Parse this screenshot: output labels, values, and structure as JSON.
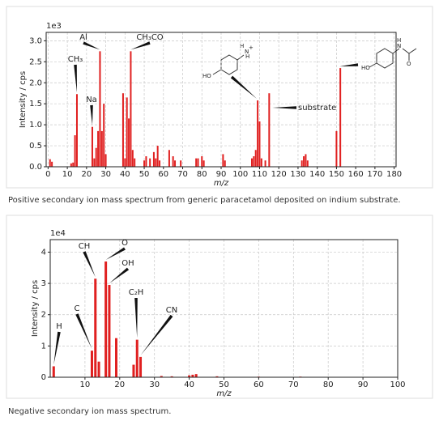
{
  "chart_data": [
    {
      "type": "bar",
      "offset_label": "1e3",
      "ylabel": "Intensity / cps",
      "xlabel": "m/z",
      "caption": "Positive secondary ion mass spectrum from generic paracetamol deposited on indium substrate.",
      "color": "#e02020",
      "grid": true,
      "xlim": [
        -1,
        181
      ],
      "ylim": [
        0,
        3.2
      ],
      "xticks": [
        0,
        10,
        20,
        30,
        40,
        50,
        60,
        70,
        80,
        90,
        100,
        110,
        120,
        130,
        140,
        150,
        160,
        170,
        180
      ],
      "yticks": [
        {
          "value": 0,
          "label": "0.0"
        },
        0.5,
        {
          "value": 1,
          "label": "1.0"
        },
        1.5,
        {
          "value": 2,
          "label": "2.0"
        },
        2.5,
        {
          "value": 3,
          "label": "3.0"
        }
      ],
      "x": [
        1,
        2,
        12,
        13,
        14,
        15,
        23,
        24,
        25,
        26,
        27,
        28,
        29,
        30,
        39,
        40,
        41,
        42,
        43,
        44,
        45,
        50,
        51,
        53,
        55,
        56,
        57,
        58,
        63,
        65,
        66,
        69,
        77,
        78,
        80,
        81,
        91,
        92,
        106,
        107,
        108,
        109,
        110,
        111,
        113,
        115,
        132,
        133,
        134,
        135,
        150,
        152
      ],
      "values": [
        0.18,
        0.12,
        0.08,
        0.1,
        0.75,
        1.73,
        0.95,
        0.2,
        0.45,
        0.85,
        2.75,
        0.85,
        1.5,
        0.3,
        1.75,
        0.2,
        1.65,
        1.15,
        2.75,
        0.4,
        0.2,
        0.15,
        0.25,
        0.2,
        0.35,
        0.2,
        0.5,
        0.15,
        0.4,
        0.25,
        0.15,
        0.15,
        0.2,
        0.2,
        0.25,
        0.15,
        0.3,
        0.15,
        0.2,
        0.25,
        0.4,
        1.58,
        1.08,
        0.2,
        0.15,
        1.75,
        0.15,
        0.25,
        0.3,
        0.15,
        0.85,
        2.35
      ],
      "annotations": [
        "CH₃",
        "Na",
        "Al",
        "CH₃CO",
        "substrate"
      ],
      "structure_labels": [
        "HO",
        "N",
        "H",
        "H",
        "+",
        "HO",
        "H",
        "N",
        "O"
      ]
    },
    {
      "type": "bar",
      "offset_label": "1e4",
      "ylabel": "Intensity / cps",
      "xlabel": "m/z",
      "caption": "Negative secondary ion mass spectrum.",
      "color": "#e02020",
      "grid": true,
      "xlim": [
        0,
        100
      ],
      "ylim": [
        0,
        4.4
      ],
      "xticks": [
        10,
        20,
        30,
        40,
        50,
        60,
        70,
        80,
        90,
        100
      ],
      "yticks": [
        0,
        1,
        2,
        3,
        4
      ],
      "x": [
        1,
        12,
        13,
        14,
        16,
        17,
        19,
        24,
        25,
        26,
        32,
        35,
        40,
        41,
        42,
        48,
        60,
        72
      ],
      "values": [
        0.35,
        0.85,
        3.15,
        0.5,
        3.7,
        2.95,
        1.25,
        0.4,
        1.2,
        0.65,
        0.04,
        0.03,
        0.06,
        0.08,
        0.1,
        0.03,
        0.02,
        0.02
      ],
      "annotations": [
        "H",
        "C",
        "CH",
        "O",
        "OH",
        "C₂H",
        "CN"
      ]
    }
  ]
}
